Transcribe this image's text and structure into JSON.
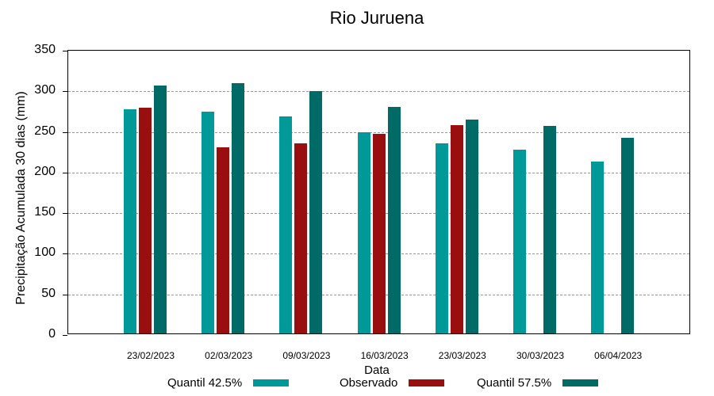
{
  "chart_data": {
    "type": "bar",
    "title": "Rio Juruena",
    "xlabel": "Data",
    "ylabel": "Precipitação Acumulada 30 dias (mm)",
    "ylim": [
      0,
      350
    ],
    "yticks": [
      0,
      50,
      100,
      150,
      200,
      250,
      300,
      350
    ],
    "grid": true,
    "legend_position": "bottom",
    "categories": [
      "23/02/2023",
      "02/03/2023",
      "09/03/2023",
      "16/03/2023",
      "23/03/2023",
      "30/03/2023",
      "06/04/2023"
    ],
    "series": [
      {
        "name": "Quantil 42.5%",
        "color": "#009999",
        "values": [
          276,
          273,
          267,
          248,
          234,
          226,
          212
        ]
      },
      {
        "name": "Observado",
        "color": "#990f0f",
        "values": [
          278,
          229,
          234,
          246,
          256,
          null,
          null
        ]
      },
      {
        "name": "Quantil 57.5%",
        "color": "#006a66",
        "values": [
          305,
          308,
          298,
          279,
          263,
          255,
          241
        ]
      }
    ]
  }
}
